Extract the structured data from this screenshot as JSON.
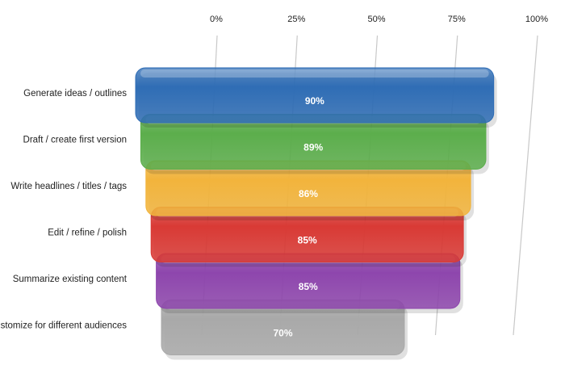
{
  "chart_data": {
    "type": "bar",
    "orientation": "horizontal",
    "categories": [
      "Generate ideas / outlines",
      "Draft / create first version",
      "Write headlines / titles / tags",
      "Edit / refine / polish",
      "Summarize existing content",
      "Customize for different audiences"
    ],
    "values": [
      90,
      89,
      86,
      85,
      85,
      70
    ],
    "value_labels": [
      "90%",
      "89%",
      "86%",
      "85%",
      "85%",
      "70%"
    ],
    "colors": [
      "#2f6db5",
      "#5cae4c",
      "#f2b43c",
      "#d93a35",
      "#8e46ad",
      "#a9a9a9"
    ],
    "xlim": [
      0,
      100
    ],
    "xticks": [
      {
        "value": 0,
        "label": "0%"
      },
      {
        "value": 25,
        "label": "25%"
      },
      {
        "value": 50,
        "label": "50%"
      },
      {
        "value": 75,
        "label": "75%"
      },
      {
        "value": 100,
        "label": "100%"
      }
    ],
    "grid": true
  }
}
